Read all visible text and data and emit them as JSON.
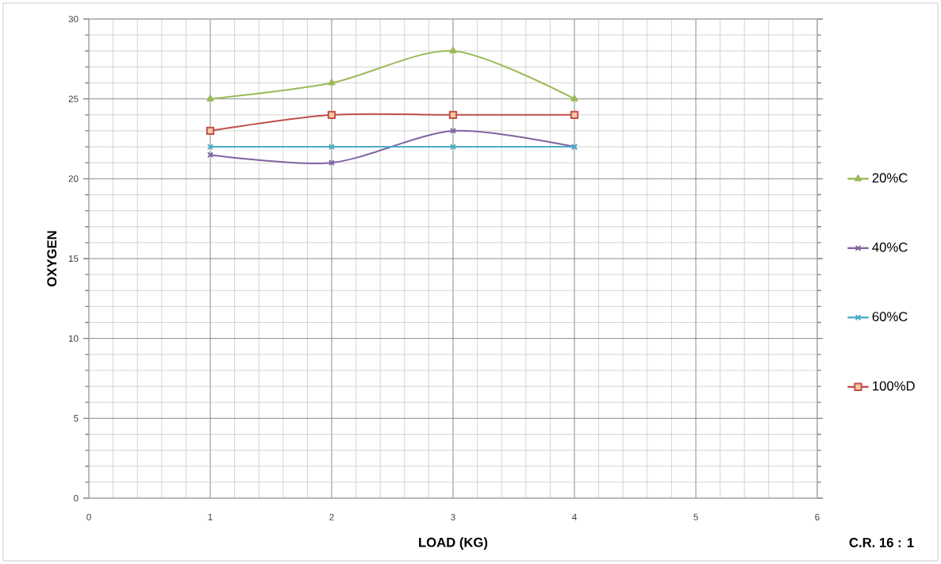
{
  "chart_data": {
    "type": "line",
    "xlabel": "LOAD      (KG)",
    "ylabel": "OXYGEN",
    "x": [
      1,
      2,
      3,
      4
    ],
    "series": [
      {
        "name": "20%C",
        "color": "#9bbb59",
        "marker": "triangle",
        "values": [
          25,
          26,
          28,
          25
        ]
      },
      {
        "name": "40%C",
        "color": "#8064a2",
        "marker": "cross",
        "values": [
          21.5,
          21,
          23,
          22
        ]
      },
      {
        "name": "60%C",
        "color": "#4bacc6",
        "marker": "cross",
        "values": [
          22,
          22,
          22,
          22
        ]
      },
      {
        "name": "100%D",
        "color": "#c0504d",
        "marker": "square",
        "values": [
          23,
          24,
          24,
          24
        ]
      }
    ],
    "xlim": [
      0,
      6
    ],
    "xticks": [
      0,
      1,
      2,
      3,
      4,
      5,
      6
    ],
    "ylim": [
      0,
      30
    ],
    "yticks": [
      0,
      5,
      10,
      15,
      20,
      25,
      30
    ],
    "grid": true,
    "legend": "right",
    "line_style": "solid",
    "annotations": [
      "C.R. 16 : 1"
    ]
  }
}
